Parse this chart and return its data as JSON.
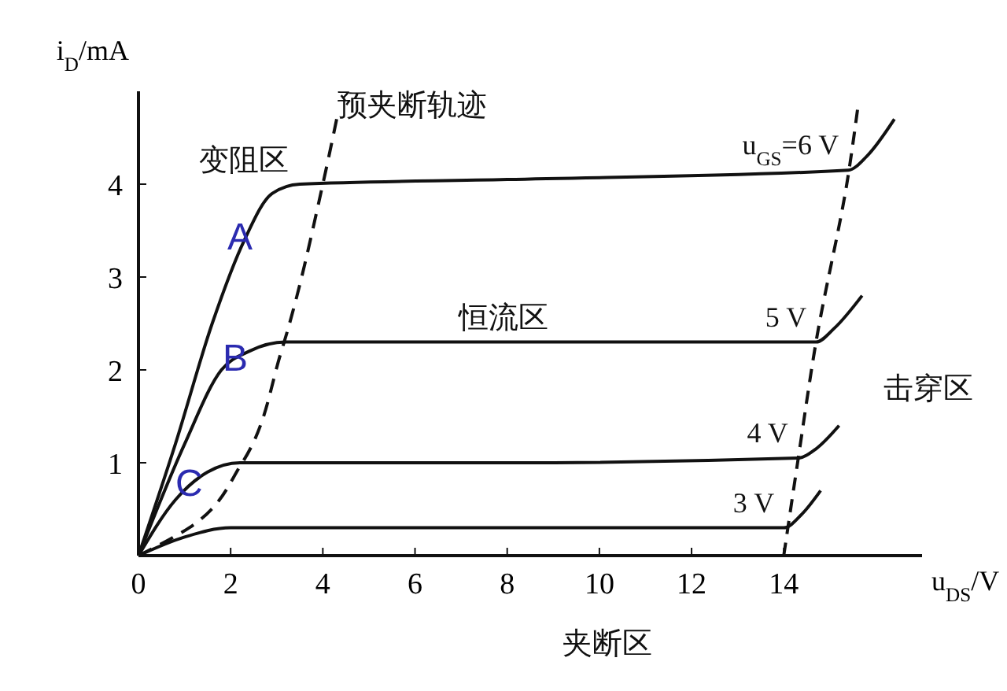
{
  "chart_data": {
    "type": "line",
    "xlabel": "u$_{DS}$/V",
    "ylabel": "i$_{D}$/mA",
    "xlim": [
      0,
      17
    ],
    "ylim": [
      0,
      5
    ],
    "xticks": [
      0,
      2,
      4,
      6,
      8,
      10,
      12,
      14
    ],
    "yticks": [
      1,
      2,
      3,
      4
    ],
    "grid": false,
    "marker": "none",
    "line_style": "solid",
    "series": [
      {
        "name": "u$_{GS}$=6 V",
        "color": "#111111",
        "x": [
          0,
          0.8,
          1.6,
          2.3,
          2.9,
          3.5,
          8,
          15.4,
          15.8,
          16.4
        ],
        "values": [
          0,
          1.2,
          2.5,
          3.4,
          3.9,
          4.0,
          4.05,
          4.15,
          4.3,
          4.7
        ]
      },
      {
        "name": "5 V",
        "color": "#111111",
        "x": [
          0,
          1.0,
          1.8,
          2.4,
          3.2,
          8,
          14.7,
          15.1,
          15.7
        ],
        "values": [
          0,
          1.2,
          2.0,
          2.2,
          2.3,
          2.3,
          2.3,
          2.45,
          2.8
        ]
      },
      {
        "name": "4 V",
        "color": "#111111",
        "x": [
          0,
          0.8,
          1.5,
          2.2,
          3.0,
          8,
          14.3,
          14.7,
          15.2
        ],
        "values": [
          0,
          0.6,
          0.9,
          1.0,
          1.0,
          1.0,
          1.05,
          1.15,
          1.4
        ]
      },
      {
        "name": "3 V",
        "color": "#111111",
        "x": [
          0,
          1.0,
          2.0,
          8,
          14.0,
          14.4,
          14.8
        ],
        "values": [
          0,
          0.2,
          0.3,
          0.3,
          0.3,
          0.45,
          0.7
        ]
      },
      {
        "color": "#111111",
        "line_style": "dashed",
        "x": [
          0,
          1.1,
          2.25,
          3.1,
          4.0,
          4.3
        ],
        "values": [
          0,
          0.3,
          1.0,
          2.2,
          4.0,
          4.7
        ]
      },
      {
        "color": "#111111",
        "line_style": "dashed",
        "x": [
          14.0,
          14.3,
          14.7,
          15.4,
          15.6
        ],
        "values": [
          0,
          1.0,
          2.3,
          4.1,
          4.8
        ]
      }
    ],
    "annotations": [
      {
        "text": "A",
        "x": 2.2,
        "y": 3.4
      },
      {
        "text": "B",
        "x": 2.1,
        "y": 2.1
      },
      {
        "text": "C",
        "x": 1.1,
        "y": 0.75
      },
      "变阻区",
      "预夹断轨迹",
      "恒流区",
      "击穿区",
      "夹断区"
    ]
  }
}
